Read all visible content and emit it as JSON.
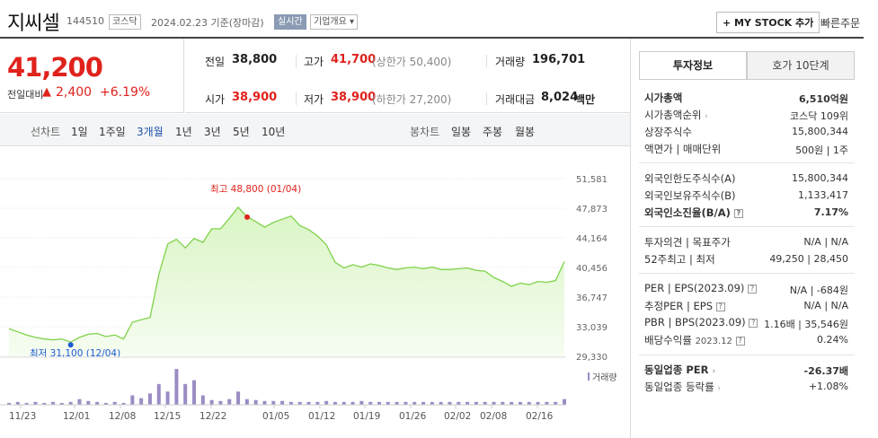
{
  "header": {
    "name": "지씨셀",
    "code": "144510",
    "market": "코스닥",
    "date_label": "2024.02.23  기준(장마감)",
    "realtime": "실시간",
    "overview": "기업개요 ▾",
    "mystock": "+ MY STOCK 추가",
    "quick_order": "빠른주문"
  },
  "price": {
    "current": "41,200",
    "change_label": "전일대비",
    "change_amount": "2,400",
    "change_rate": "+6.19%"
  },
  "quotes": {
    "prev_label": "전일",
    "prev": "38,800",
    "high_label": "고가",
    "high": "41,700",
    "upper": "(상한가 50,400)",
    "volume_label": "거래량",
    "volume": "196,701",
    "open_label": "시가",
    "open": "38,900",
    "low_label": "저가",
    "low": "38,900",
    "lower": "(하한가 27,200)",
    "amount_label": "거래대금",
    "amount": "8,024",
    "amount_unit": "백만"
  },
  "period_bar": {
    "line_label": "선차트",
    "line_periods": [
      "1일",
      "1주일",
      "3개월",
      "1년",
      "3년",
      "5년",
      "10년"
    ],
    "candle_label": "봉차트",
    "candle_periods": [
      "일봉",
      "주봉",
      "월봉"
    ]
  },
  "chart_data": {
    "type": "area",
    "y_ticks": [
      "51,581",
      "47,873",
      "44,164",
      "40,456",
      "36,747",
      "33,039",
      "29,330"
    ],
    "ylim": [
      29330,
      51581
    ],
    "x_ticks": [
      "11/23",
      "12/01",
      "12/08",
      "12/15",
      "12/22",
      "01/05",
      "01/12",
      "01/19",
      "01/26",
      "02/02",
      "02/08",
      "02/16"
    ],
    "max_label": "최고 48,800 (01/04)",
    "min_label": "최저 31,100 (12/04)",
    "volume_legend": "거래량",
    "series": [
      {
        "values": [
          32800,
          32400,
          32000,
          31700,
          31500,
          31400,
          31500,
          31100,
          31700,
          32100,
          32200,
          31800,
          32000,
          31500,
          33600,
          33900,
          34200,
          39600,
          43400,
          44000,
          42900,
          44100,
          43600,
          45300,
          45300,
          46600,
          48000,
          46800,
          46200,
          45500,
          46100,
          46500,
          46900,
          45700,
          45200,
          44400,
          43300,
          41100,
          40400,
          40800,
          40500,
          40900,
          40700,
          40400,
          40200,
          40400,
          40500,
          40300,
          40500,
          40200,
          40200,
          40300,
          40400,
          40100,
          40000,
          39200,
          38700,
          38100,
          38500,
          38300,
          38700,
          38600,
          38800,
          41200
        ]
      }
    ],
    "volume": [
      2,
      3,
      2,
      3,
      2,
      3,
      2,
      3,
      6,
      4,
      3,
      2,
      3,
      2,
      10,
      7,
      12,
      22,
      14,
      38,
      22,
      26,
      10,
      5,
      4,
      6,
      14,
      6,
      5,
      4,
      4,
      4,
      3,
      3,
      3,
      3,
      4,
      3,
      3,
      3,
      4,
      3,
      3,
      3,
      3,
      3,
      3,
      3,
      3,
      3,
      3,
      3,
      3,
      3,
      3,
      3,
      3,
      3,
      3,
      3,
      3,
      3,
      3,
      6
    ]
  },
  "tabs": {
    "invest": "투자정보",
    "orderbook": "호가 10단계"
  },
  "invest_info": {
    "mcap_label": "시가총액",
    "mcap": "6,510억원",
    "rank_label": "시가총액순위",
    "rank": "코스닥 109위",
    "shares_label": "상장주식수",
    "shares": "15,800,344",
    "par_label": "액면가 | 매매단위",
    "par": "500원 | 1주",
    "foreign_limit_label": "외국인한도주식수(A)",
    "foreign_limit": "15,800,344",
    "foreign_hold_label": "외국인보유주식수(B)",
    "foreign_hold": "1,133,417",
    "foreign_rate_label": "외국인소진율(B/A)",
    "foreign_rate": "7.17%",
    "opinion_label": "투자의견 | 목표주가",
    "opinion": "N/A | N/A",
    "week52_label": "52주최고 | 최저",
    "week52": "49,250 | 28,450",
    "per_label": "PER | EPS(2023.09)",
    "per": "N/A | -684원",
    "est_label": "추정PER | EPS",
    "est": "N/A | N/A",
    "pbr_label": "PBR | BPS(2023.09)",
    "pbr": "1.16배 | 35,546원",
    "div_label": "배당수익률",
    "div_date": "2023.12",
    "div": "0.24%",
    "sector_per_label": "동일업종 PER",
    "sector_per": "-26.37배",
    "sector_rate_label": "동일업종 등락률",
    "sector_rate": "+1.08%"
  },
  "colors": {
    "up": "#e0221c",
    "line": "#7fd14a",
    "area": "#d9f5c4",
    "volume": "#9b8cc4"
  }
}
